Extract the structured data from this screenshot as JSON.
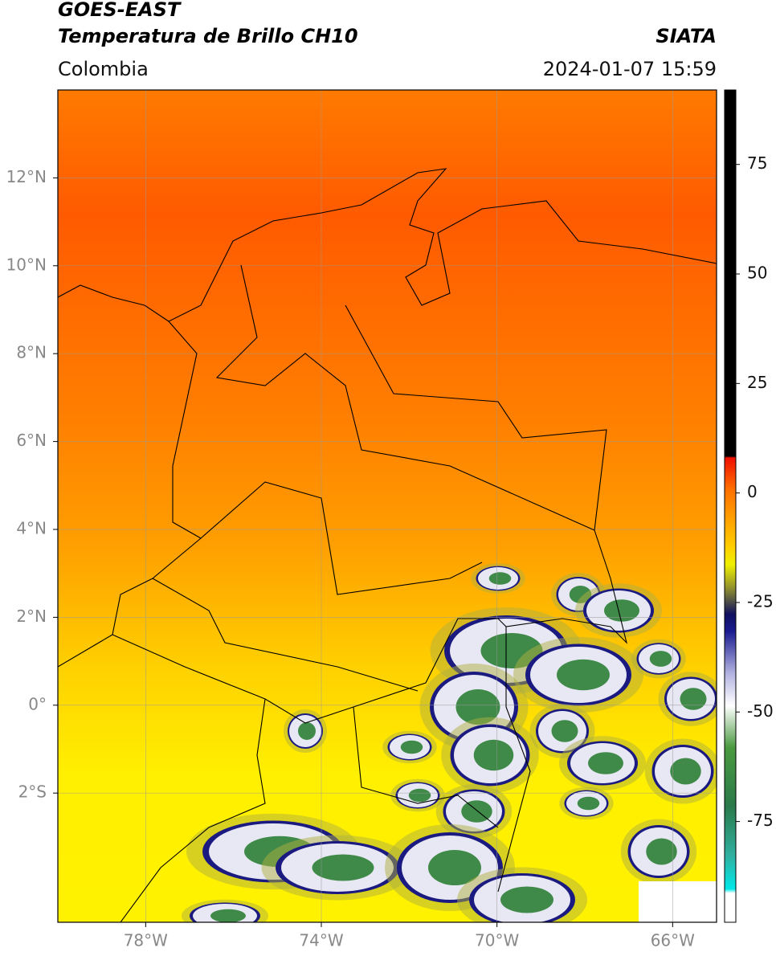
{
  "header": {
    "title_line1": "GOES-EAST",
    "title_line2": "Temperatura de Brillo CH10",
    "subtitle": "Colombia",
    "source": "SIATA",
    "datetime": "2024-01-07 15:59"
  },
  "map": {
    "lonlim": [
      -80,
      -65
    ],
    "latlim": [
      -4.94,
      14
    ],
    "lon_ticks": [
      {
        "value": -78,
        "label": "78°W"
      },
      {
        "value": -74,
        "label": "74°W"
      },
      {
        "value": -70,
        "label": "70°W"
      },
      {
        "value": -66,
        "label": "66°W"
      }
    ],
    "lat_ticks": [
      {
        "value": 12,
        "label": "12°N"
      },
      {
        "value": 10,
        "label": "10°N"
      },
      {
        "value": 8,
        "label": "8°N"
      },
      {
        "value": 6,
        "label": "6°N"
      },
      {
        "value": 4,
        "label": "4°N"
      },
      {
        "value": 2,
        "label": "2°N"
      },
      {
        "value": 0,
        "label": "0°"
      },
      {
        "value": -2,
        "label": "2°S"
      }
    ]
  },
  "colorbar": {
    "lim": [
      -98,
      92
    ],
    "ticks": [
      75,
      50,
      25,
      0,
      -25,
      -50,
      -75
    ]
  }
}
